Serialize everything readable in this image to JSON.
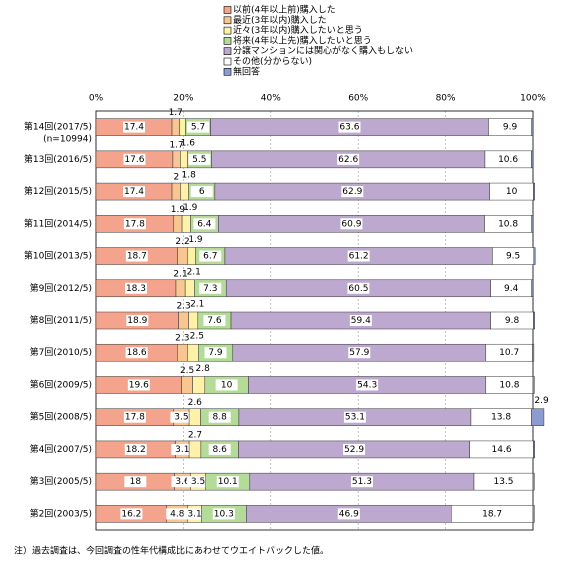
{
  "chart_data": {
    "type": "stacked-bar-horizontal",
    "categories": [
      "第14回(2017/5)",
      "第13回(2016/5)",
      "第12回(2015/5)",
      "第11回(2014/5)",
      "第10回(2013/5)",
      "第9回(2012/5)",
      "第8回(2011/5)",
      "第7回(2010/5)",
      "第6回(2009/5)",
      "第5回(2008/5)",
      "第4回(2007/5)",
      "第3回(2005/5)",
      "第2回(2003/5)"
    ],
    "first_category_note": "(n=10994)",
    "xlim": [
      0,
      100
    ],
    "xticks": [
      {
        "value": 0,
        "label": "0%"
      },
      {
        "value": 20,
        "label": "20%"
      },
      {
        "value": 40,
        "label": "40%"
      },
      {
        "value": 60,
        "label": "60%"
      },
      {
        "value": 80,
        "label": "80%"
      },
      {
        "value": 100,
        "label": "100%"
      }
    ],
    "series": [
      {
        "name": "以前(4年以上前)購入した",
        "color": "#f4a48c",
        "values": [
          17.4,
          17.6,
          17.4,
          17.8,
          18.7,
          18.3,
          18.9,
          18.6,
          19.6,
          17.8,
          18.2,
          18.0,
          16.2
        ]
      },
      {
        "name": "最近(3年以内)購入した",
        "color": "#f8c690",
        "values": [
          1.7,
          1.7,
          2.0,
          1.9,
          2.2,
          2.1,
          2.3,
          2.3,
          2.5,
          3.5,
          3.1,
          3.6,
          4.8
        ]
      },
      {
        "name": "近々(3年以内)購入したいと思う",
        "color": "#fff2a8",
        "values": [
          1.4,
          1.6,
          1.8,
          1.9,
          1.9,
          2.1,
          2.1,
          2.5,
          2.8,
          2.6,
          2.7,
          3.5,
          3.1
        ],
        "value_labels": [
          null,
          "1.6",
          "1.8",
          "1.9",
          "1.9",
          "2.1",
          "2.1",
          "2.5",
          "2.8",
          "2.6",
          "2.7",
          "3.5",
          "3.1"
        ]
      },
      {
        "name": "将来(4年以上先)購入したいと思う",
        "color": "#b4dc98",
        "values": [
          5.7,
          5.5,
          6.0,
          6.4,
          6.7,
          7.3,
          7.6,
          7.9,
          10.0,
          8.8,
          8.6,
          10.1,
          10.3
        ]
      },
      {
        "name": "分譲マンションには関心がなく購入もしない",
        "color": "#bda8d0",
        "values": [
          63.6,
          62.6,
          62.9,
          60.9,
          61.2,
          60.5,
          59.4,
          57.9,
          54.3,
          53.1,
          52.9,
          51.3,
          46.9
        ]
      },
      {
        "name": "その他(分からない)",
        "color": "#ffffff",
        "values": [
          9.9,
          10.6,
          10.0,
          10.8,
          9.5,
          9.4,
          9.8,
          10.7,
          10.8,
          13.8,
          14.6,
          13.5,
          18.7
        ]
      },
      {
        "name": "無回答",
        "color": "#8c9cd0",
        "values": [
          0.3,
          0.4,
          0.3,
          0.3,
          0.3,
          0.3,
          0.3,
          0.3,
          0.3,
          2.9,
          0.3,
          0.3,
          0.3
        ],
        "value_labels": [
          null,
          null,
          null,
          null,
          null,
          null,
          null,
          null,
          null,
          "2.9",
          null,
          null,
          null
        ]
      }
    ],
    "footnote": "注）過去調査は、今回調査の性年代構成比にあわせてウエイトバックした値。"
  }
}
